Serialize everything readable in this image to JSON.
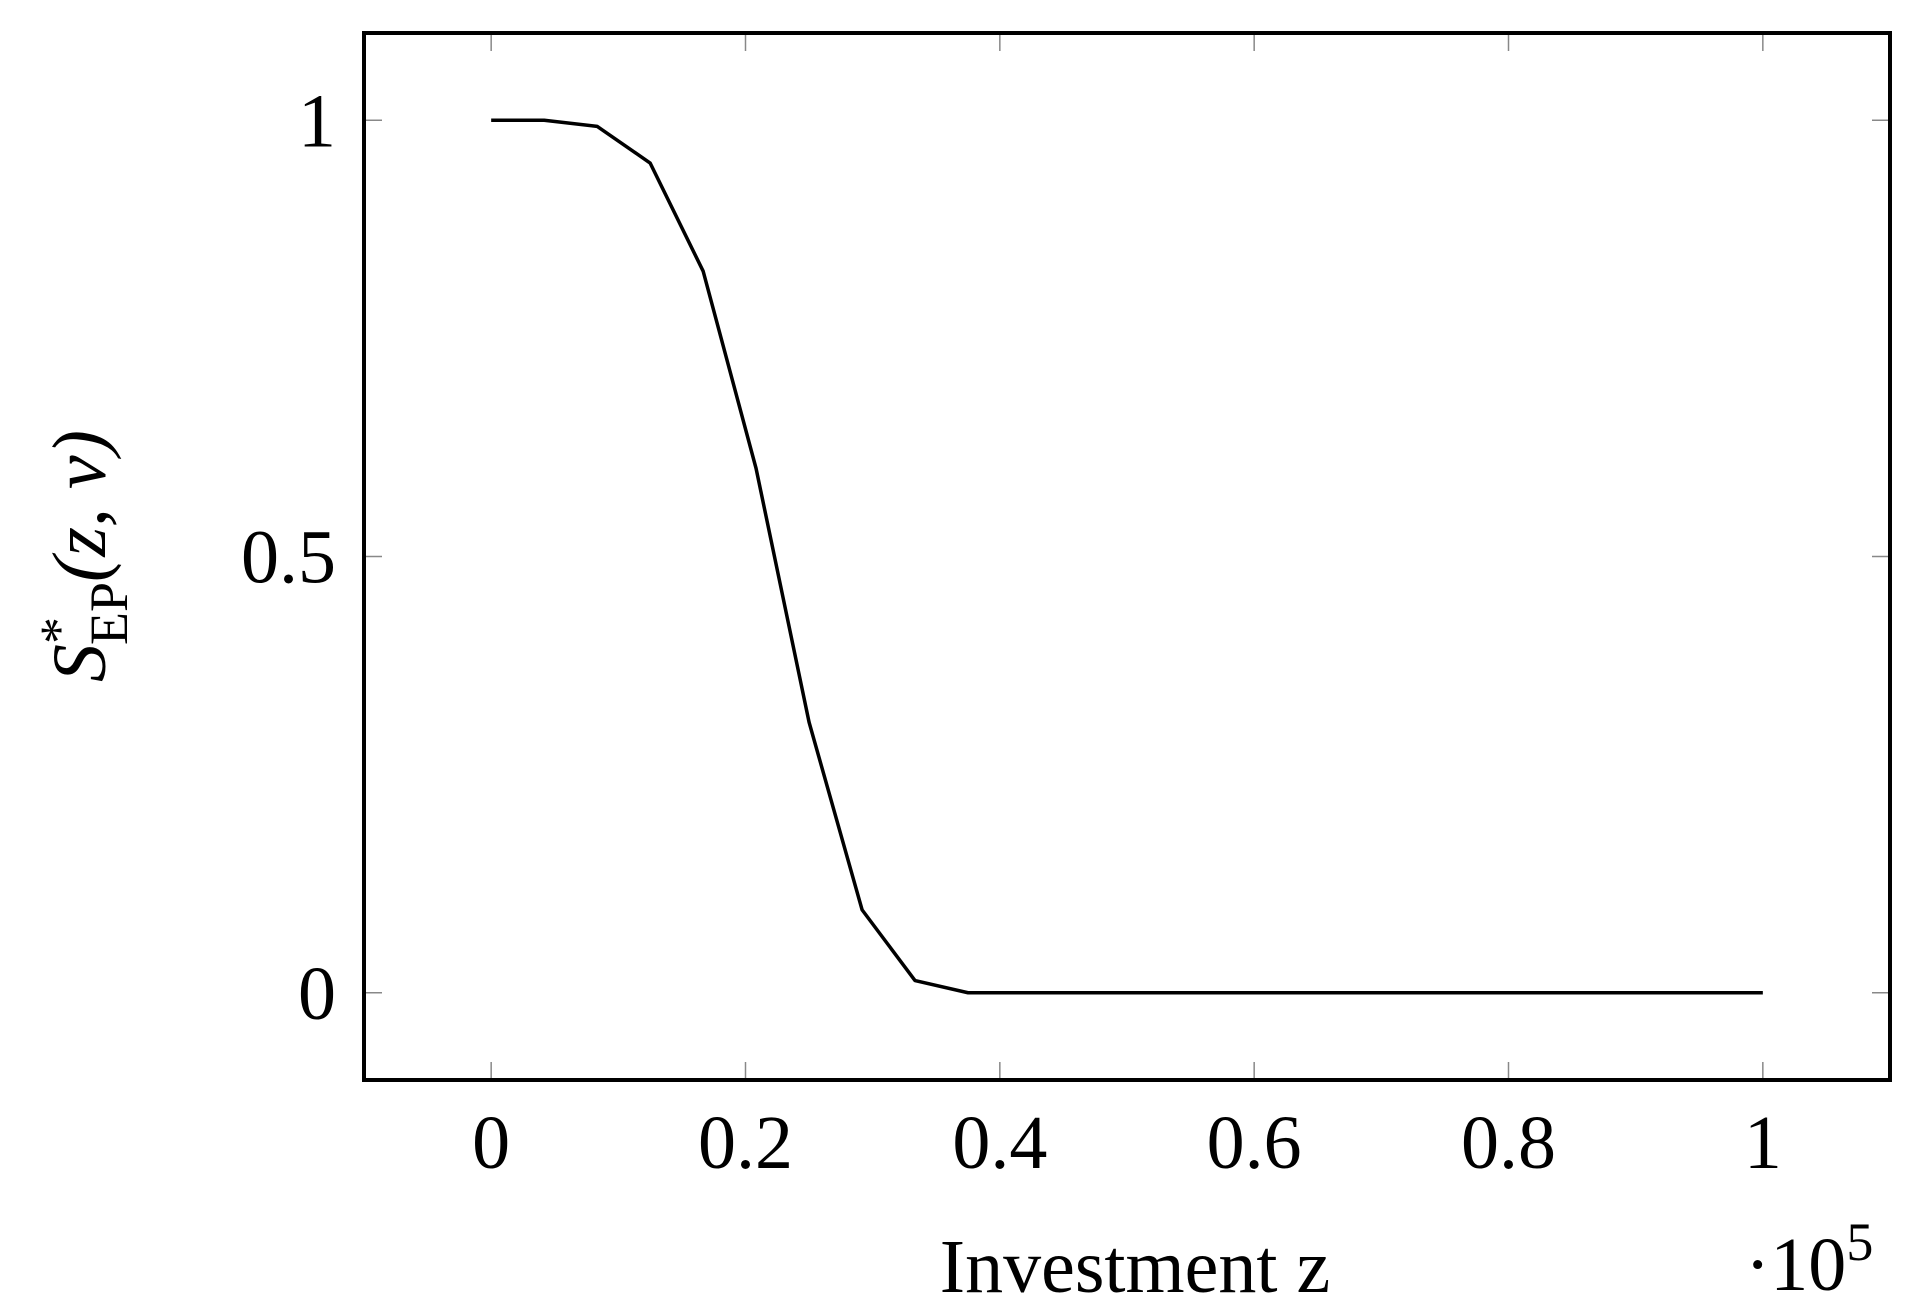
{
  "chart_data": {
    "type": "line",
    "xlabel": "Investment z",
    "x_scale_label": {
      "base": "·10",
      "exponent": "5"
    },
    "ylabel": {
      "base": "S",
      "sup": "*",
      "sub": "EP",
      "args": "(z, v)"
    },
    "x": [
      0,
      0.0417,
      0.0833,
      0.125,
      0.1667,
      0.2083,
      0.25,
      0.2917,
      0.3333,
      0.375,
      0.4167,
      0.5,
      0.6,
      0.7,
      0.8,
      0.9,
      1
    ],
    "series": [
      {
        "color": "#000000",
        "values": [
          1,
          1,
          0.993,
          0.951,
          0.827,
          0.601,
          0.31,
          0.095,
          0.014,
          0,
          0,
          0,
          0,
          0,
          0,
          0,
          0
        ]
      }
    ],
    "xlim": [
      -0.1,
      1.1
    ],
    "ylim": [
      -0.1,
      1.1
    ],
    "xticks": [
      0,
      0.2,
      0.4,
      0.6,
      0.8,
      1
    ],
    "yticks": [
      0,
      0.5,
      1
    ],
    "grid": false
  }
}
